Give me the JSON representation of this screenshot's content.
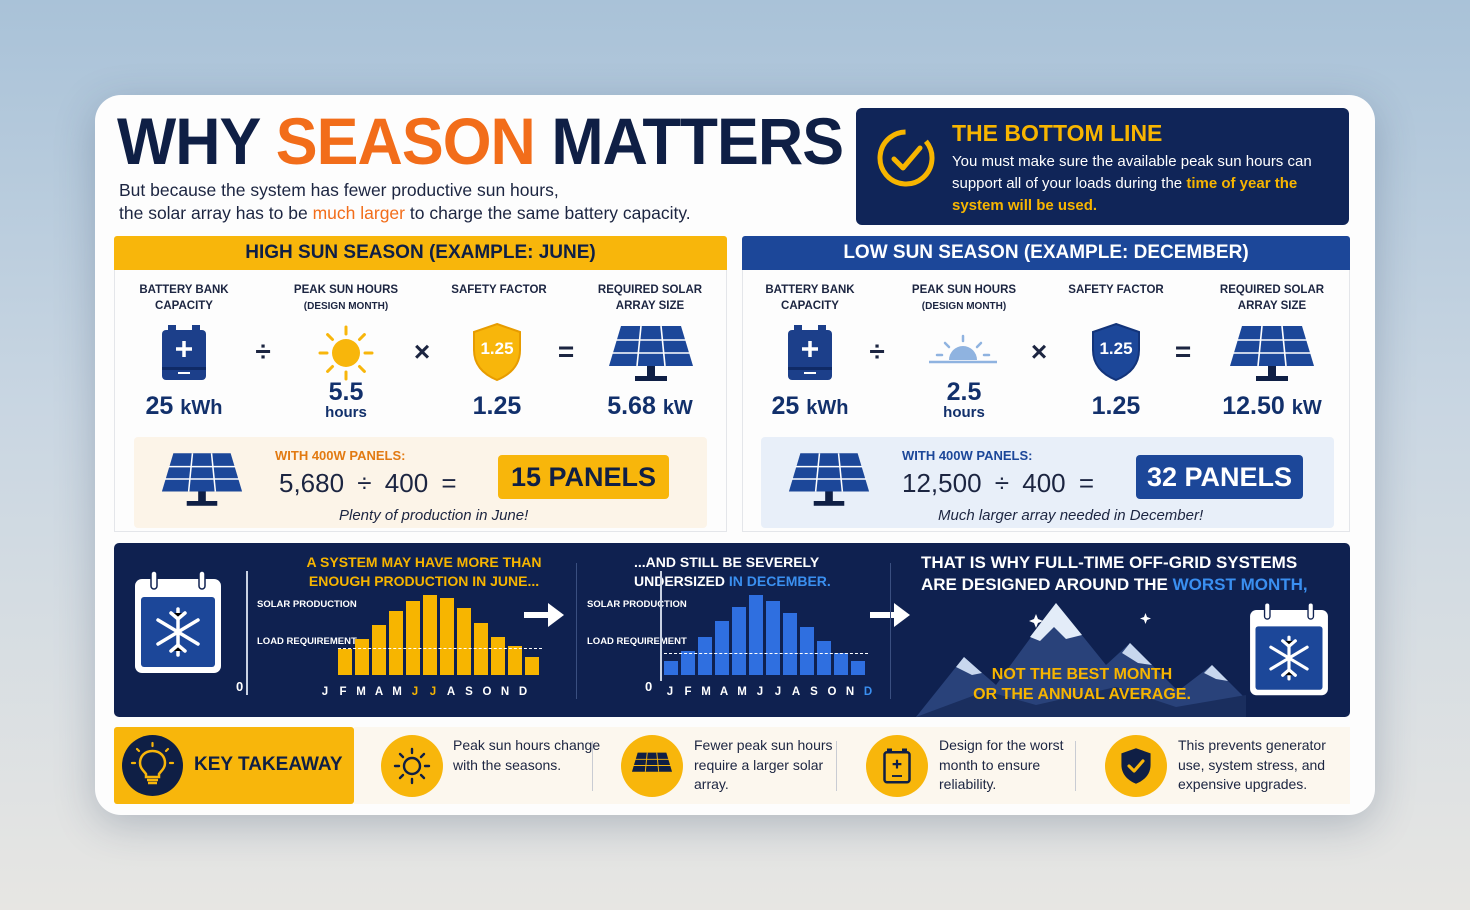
{
  "header": {
    "title_part1": "WHY",
    "title_highlight": "SEASON",
    "title_part2": "MATTERS",
    "subtitle_line1": "But because the system has fewer productive sun hours,",
    "subtitle_line2_pre": "the solar array has to be",
    "subtitle_line2_hl": "much larger",
    "subtitle_line2_post": "to charge the same battery capacity."
  },
  "bottom_line": {
    "title": "THE BOTTOM LINE",
    "body_pre": "You must make sure the available peak sun hours can support all of your loads during the",
    "body_hl": "time of year the system will be used."
  },
  "high_season": {
    "header": "HIGH SUN SEASON (EXAMPLE: JUNE)",
    "labels": {
      "battery": "BATTERY BANK CAPACITY",
      "psh": "PEAK SUN HOURS",
      "psh_sub": "(DESIGN MONTH)",
      "safety": "SAFETY FACTOR",
      "array": "REQUIRED SOLAR ARRAY SIZE"
    },
    "battery_value": "25",
    "battery_unit": "kWh",
    "psh_value": "5.5",
    "psh_unit": "hours",
    "shield_value": "1.25",
    "safety_value": "1.25",
    "array_value": "5.68",
    "array_unit": "kW",
    "op_div": "÷",
    "op_mul": "×",
    "op_eq": "=",
    "panel_label": "WITH 400W PANELS:",
    "calc": "5,680  ÷  400  =",
    "panels": "15 PANELS",
    "note": "Plenty of production in June!"
  },
  "low_season": {
    "header": "LOW SUN SEASON (EXAMPLE: DECEMBER)",
    "labels": {
      "battery": "BATTERY BANK CAPACITY",
      "psh": "PEAK SUN HOURS",
      "psh_sub": "(DESIGN MONTH)",
      "safety": "SAFETY FACTOR",
      "array": "REQUIRED SOLAR ARRAY SIZE"
    },
    "battery_value": "25",
    "battery_unit": "kWh",
    "psh_value": "2.5",
    "psh_unit": "hours",
    "shield_value": "1.25",
    "safety_value": "1.25",
    "array_value": "12.50",
    "array_unit": "kW",
    "op_div": "÷",
    "op_mul": "×",
    "op_eq": "=",
    "panel_label": "WITH 400W PANELS:",
    "calc": "12,500  ÷  400  =",
    "panels": "32 PANELS",
    "note": "Much larger array needed in December!"
  },
  "band": {
    "left_line1": "A SYSTEM MAY HAVE MORE THAN",
    "left_line2": "ENOUGH PRODUCTION IN JUNE...",
    "mid_line1": "...AND STILL BE SEVERELY",
    "mid_line2_pre": "UNDERSIZED",
    "mid_line2_hl": "IN DECEMBER.",
    "right_line1": "THAT IS WHY FULL-TIME OFF-GRID SYSTEMS",
    "right_line2_pre": "ARE DESIGNED AROUND THE",
    "right_line2_hl": "WORST MONTH,",
    "mountain_line1": "NOT THE BEST MONTH",
    "mountain_line2": "OR THE ANNUAL AVERAGE.",
    "solar_label": "SOLAR PRODUCTION",
    "load_label": "LOAD REQUIREMENT",
    "zero": "0",
    "months": [
      "J",
      "F",
      "M",
      "A",
      "M",
      "J",
      "J",
      "A",
      "S",
      "O",
      "N",
      "D"
    ]
  },
  "chart_data": [
    {
      "type": "bar",
      "categories": [
        "J",
        "F",
        "M",
        "A",
        "M",
        "J",
        "J",
        "A",
        "S",
        "O",
        "N",
        "D"
      ],
      "series": [
        {
          "name": "SOLAR PRODUCTION",
          "values": [
            0.33,
            0.45,
            0.62,
            0.8,
            0.93,
            1.0,
            0.96,
            0.84,
            0.65,
            0.48,
            0.36,
            0.22
          ]
        }
      ],
      "load_requirement": 0.33,
      "highlight": [
        "J",
        "J"
      ],
      "color": "#f7b500"
    },
    {
      "type": "bar",
      "categories": [
        "J",
        "F",
        "M",
        "A",
        "M",
        "J",
        "J",
        "A",
        "S",
        "O",
        "N",
        "D"
      ],
      "series": [
        {
          "name": "SOLAR PRODUCTION",
          "values": [
            0.18,
            0.3,
            0.48,
            0.68,
            0.85,
            1.0,
            0.92,
            0.78,
            0.6,
            0.42,
            0.28,
            0.18
          ]
        }
      ],
      "load_requirement": 0.26,
      "highlight": [
        "D"
      ],
      "color": "#2f6fe0"
    }
  ],
  "takeaway": {
    "label": "KEY TAKEAWAY",
    "tips": [
      {
        "icon": "sun-icon",
        "text": "Peak sun hours change with the seasons."
      },
      {
        "icon": "solar-panel-icon",
        "text": "Fewer peak sun hours require a larger solar array."
      },
      {
        "icon": "battery-icon",
        "text": "Design for the worst month to ensure reliability."
      },
      {
        "icon": "shield-check-icon",
        "text": "This prevents generator use, system stress, and expensive upgrades."
      }
    ]
  },
  "colors": {
    "navy": "#0f1f45",
    "orange": "#f26d1a",
    "yellow": "#f8b60b",
    "blue": "#1c4799"
  }
}
